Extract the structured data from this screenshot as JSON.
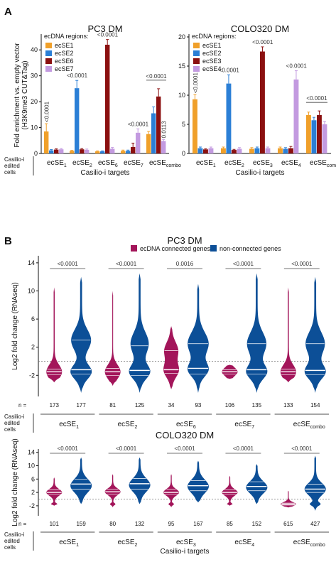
{
  "colors": {
    "ecSE1": "#f0a02a",
    "ecSE2": "#2b7fd6",
    "ecSE6": "#8b1010",
    "ecSE3": "#8b1010",
    "ecSE7": "#c39ae0",
    "ecSE4": "#c39ae0",
    "connected": "#a3155a",
    "nonconnected": "#0c4f97"
  },
  "panel_labels": {
    "a": "A",
    "b": "B"
  },
  "casilio_edited_label": [
    "Casilio-i",
    "edited",
    "cells"
  ],
  "x_group_title": "Casilio-i targets",
  "n_prefix": "n =",
  "chart_data": [
    {
      "type": "bar",
      "title": "PC3 DM",
      "ylabel": [
        "Fold enrichment vs. empty vector",
        "(H3K9me3 CUT&Tag)"
      ],
      "ylim": [
        0,
        45
      ],
      "yticks": [
        "0",
        "10",
        "20",
        "30",
        "40"
      ],
      "yticks_values": [
        0,
        10,
        20,
        30,
        40
      ],
      "legend_title": "ecDNA regions:",
      "legend_position": "top-left",
      "series": [
        {
          "name": "ecSE1",
          "color_key": "ecSE1"
        },
        {
          "name": "ecSE2",
          "color_key": "ecSE2"
        },
        {
          "name": "ecSE6",
          "color_key": "ecSE6"
        },
        {
          "name": "ecSE7",
          "color_key": "ecSE7"
        }
      ],
      "categories": [
        {
          "base": "ecSE",
          "sub": "1",
          "values": [
            8.5,
            1.2,
            1.5,
            1.6
          ],
          "errors": [
            3.0,
            0.3,
            0.3,
            0.3
          ],
          "annotation": "<0.0001",
          "annot_rotated": true
        },
        {
          "base": "ecSE",
          "sub": "2",
          "values": [
            1.0,
            25.2,
            1.6,
            1.4
          ],
          "errors": [
            0.2,
            3.0,
            0.3,
            0.3
          ],
          "annotation": "<0.0001",
          "annot_rotated": false
        },
        {
          "base": "ecSE",
          "sub": "6",
          "values": [
            0.8,
            0.8,
            42.0,
            1.8
          ],
          "errors": [
            0.2,
            0.2,
            2.0,
            0.5
          ],
          "annotation": "<0.0001",
          "annot_rotated": false
        },
        {
          "base": "ecSE",
          "sub": "7",
          "values": [
            1.0,
            1.0,
            2.5,
            8.0
          ],
          "errors": [
            0.3,
            0.3,
            1.5,
            1.5
          ],
          "annotation": "<0.0001",
          "annot_rotated": false
        },
        {
          "base": "ecSE",
          "sub": "combo",
          "values": [
            7.5,
            15.5,
            22.0,
            4.8
          ],
          "errors": [
            1.0,
            2.5,
            3.0,
            0.6
          ],
          "annotation": "<0.0001",
          "annot_rotated": false,
          "extra_annotation": "0.0113"
        }
      ]
    },
    {
      "type": "bar",
      "title": "COLO320 DM",
      "ylabel": [],
      "ylim": [
        0,
        20
      ],
      "yticks": [
        "0",
        "5",
        "10",
        "15",
        "20"
      ],
      "yticks_values": [
        0,
        5,
        10,
        15,
        20
      ],
      "legend_title": "ecDNA regions:",
      "legend_position": "top-left",
      "series": [
        {
          "name": "ecSE1",
          "color_key": "ecSE1"
        },
        {
          "name": "ecSE2",
          "color_key": "ecSE2"
        },
        {
          "name": "ecSE3",
          "color_key": "ecSE3"
        },
        {
          "name": "ecSE4",
          "color_key": "ecSE4"
        }
      ],
      "categories": [
        {
          "base": "ecSE",
          "sub": "1",
          "values": [
            9.3,
            0.9,
            0.7,
            0.9
          ],
          "errors": [
            0.8,
            0.2,
            0.1,
            0.2
          ],
          "annotation": "<0.0001",
          "annot_rotated": true
        },
        {
          "base": "ecSE",
          "sub": "2",
          "values": [
            0.9,
            12.0,
            0.6,
            0.8
          ],
          "errors": [
            0.2,
            1.5,
            0.1,
            0.2
          ],
          "annotation": "<0.0001",
          "annot_rotated": false
        },
        {
          "base": "ecSE",
          "sub": "3",
          "values": [
            0.8,
            0.9,
            17.5,
            0.9
          ],
          "errors": [
            0.2,
            0.2,
            0.8,
            0.2
          ],
          "annotation": "<0.0001",
          "annot_rotated": false
        },
        {
          "base": "ecSE",
          "sub": "4",
          "values": [
            0.9,
            0.8,
            0.9,
            12.7
          ],
          "errors": [
            0.2,
            0.2,
            0.3,
            1.5
          ],
          "annotation": "<0.0001",
          "annot_rotated": false
        },
        {
          "base": "ecSE",
          "sub": "combo",
          "values": [
            6.6,
            5.7,
            6.6,
            5.0
          ],
          "errors": [
            0.5,
            0.5,
            0.7,
            0.5
          ],
          "annotation": "<0.0001",
          "annot_rotated": false
        }
      ]
    },
    {
      "type": "violin",
      "title": "PC3 DM",
      "ylabel": "Log2 fold change (RNAseq)",
      "ylim": [
        -5,
        15
      ],
      "yticks": [
        "-2",
        "2",
        "6",
        "10",
        "14"
      ],
      "yticks_values": [
        -2,
        2,
        6,
        10,
        14
      ],
      "reference_line": 0,
      "legend": [
        {
          "name": "ecDNA connected genes",
          "color_key": "connected"
        },
        {
          "name": "non-connected genes",
          "color_key": "nonconnected"
        }
      ],
      "legend_position": "top",
      "groups": [
        {
          "base": "ecSE",
          "sub": "1",
          "pvalue": "<0.0001",
          "connected": {
            "n": "173",
            "min": -3,
            "max": 10.5,
            "median": -1.5,
            "q1": -1.9,
            "q3": -1.1,
            "modes": [
              [
                -1.5,
                1.0,
                0.7
              ]
            ],
            "wbase": 0.05
          },
          "nonconnected": {
            "n": "177",
            "min": -4.5,
            "max": 12.0,
            "median": -1.2,
            "q1": -1.8,
            "q3": 3.0,
            "modes": [
              [
                -1.5,
                1.0,
                0.8
              ],
              [
                3.0,
                1.5,
                0.75
              ]
            ],
            "wbase": 0.08
          }
        },
        {
          "base": "ecSE",
          "sub": "2",
          "pvalue": "<0.0001",
          "connected": {
            "n": "81",
            "min": -3.5,
            "max": 10.0,
            "median": -1.5,
            "q1": -2.0,
            "q3": -1.0,
            "modes": [
              [
                -1.5,
                1.0,
                0.95
              ]
            ],
            "wbase": 0.05
          },
          "nonconnected": {
            "n": "125",
            "min": -4.5,
            "max": 12.5,
            "median": -1.3,
            "q1": -2.0,
            "q3": 2.2,
            "modes": [
              [
                -1.5,
                1.0,
                0.8
              ],
              [
                2.5,
                1.6,
                0.7
              ]
            ],
            "wbase": 0.08
          }
        },
        {
          "base": "ecSE",
          "sub": "6",
          "pvalue": "0.0016",
          "connected": {
            "n": "34",
            "min": -4.0,
            "max": 5.0,
            "median": -1.2,
            "q1": -1.7,
            "q3": 1.5,
            "modes": [
              [
                -1.3,
                1.0,
                0.95
              ],
              [
                1.5,
                1.2,
                0.9
              ]
            ],
            "wbase": 0.1
          },
          "nonconnected": {
            "n": "93",
            "min": -4.5,
            "max": 11.0,
            "median": -1.0,
            "q1": -1.8,
            "q3": 2.5,
            "modes": [
              [
                -1.2,
                1.0,
                0.8
              ],
              [
                2.5,
                1.6,
                0.85
              ]
            ],
            "wbase": 0.08
          }
        },
        {
          "base": "ecSE",
          "sub": "7",
          "pvalue": "<0.0001",
          "connected": {
            "n": "106",
            "min": -2.5,
            "max": -0.5,
            "median": -1.5,
            "q1": -1.8,
            "q3": -1.2,
            "modes": [
              [
                -1.5,
                0.6,
                0.7
              ]
            ],
            "wbase": 0.05
          },
          "nonconnected": {
            "n": "135",
            "min": -4.5,
            "max": 12.5,
            "median": -1.2,
            "q1": -1.8,
            "q3": 2.5,
            "modes": [
              [
                -1.5,
                1.0,
                0.8
              ],
              [
                2.5,
                1.6,
                0.75
              ]
            ],
            "wbase": 0.08
          }
        },
        {
          "base": "ecSE",
          "sub": "combo",
          "pvalue": "<0.0001",
          "connected": {
            "n": "133",
            "min": -3.0,
            "max": 10.5,
            "median": -1.5,
            "q1": -1.9,
            "q3": -1.1,
            "modes": [
              [
                -1.5,
                1.0,
                0.7
              ]
            ],
            "wbase": 0.05
          },
          "nonconnected": {
            "n": "154",
            "min": -4.5,
            "max": 12.0,
            "median": -1.3,
            "q1": -1.9,
            "q3": 2.5,
            "modes": [
              [
                -1.5,
                1.0,
                0.8
              ],
              [
                2.5,
                1.6,
                0.75
              ]
            ],
            "wbase": 0.08
          }
        }
      ]
    },
    {
      "type": "violin",
      "title": "COLO320 DM",
      "ylabel": "Log2 fold change (RNAseq)",
      "ylim": [
        -5,
        15
      ],
      "yticks": [
        "-2",
        "2",
        "6",
        "10",
        "14"
      ],
      "yticks_values": [
        -2,
        2,
        6,
        10,
        14
      ],
      "reference_line": 0,
      "legend": [],
      "groups": [
        {
          "base": "ecSE",
          "sub": "1",
          "pvalue": "<0.0001",
          "connected": {
            "n": "101",
            "min": -2.0,
            "max": 6.5,
            "median": 2.0,
            "q1": 1.5,
            "q3": 2.8,
            "modes": [
              [
                2.0,
                1.0,
                0.7
              ],
              [
                -1.5,
                0.3,
                0.25
              ]
            ],
            "wbase": 0.05
          },
          "nonconnected": {
            "n": "159",
            "min": -1.5,
            "max": 12.5,
            "median": 4.5,
            "q1": 3.0,
            "q3": 6.0,
            "modes": [
              [
                4.0,
                2.0,
                0.95
              ]
            ],
            "wbase": 0.08
          }
        },
        {
          "base": "ecSE",
          "sub": "2",
          "pvalue": "<0.0001",
          "connected": {
            "n": "80",
            "min": -2.5,
            "max": 7.5,
            "median": 2.2,
            "q1": 1.5,
            "q3": 3.0,
            "modes": [
              [
                2.2,
                1.0,
                0.8
              ],
              [
                -1.5,
                0.3,
                0.25
              ]
            ],
            "wbase": 0.05
          },
          "nonconnected": {
            "n": "132",
            "min": -1.5,
            "max": 12.5,
            "median": 4.6,
            "q1": 3.0,
            "q3": 6.2,
            "modes": [
              [
                4.2,
                2.0,
                0.95
              ]
            ],
            "wbase": 0.08
          }
        },
        {
          "base": "ecSE",
          "sub": "3",
          "pvalue": "<0.0001",
          "connected": {
            "n": "95",
            "min": -2.5,
            "max": 7.5,
            "median": 2.0,
            "q1": 1.5,
            "q3": 3.0,
            "modes": [
              [
                2.0,
                1.0,
                0.8
              ],
              [
                -1.5,
                0.3,
                0.25
              ]
            ],
            "wbase": 0.05
          },
          "nonconnected": {
            "n": "167",
            "min": -1.0,
            "max": 11.5,
            "median": 4.0,
            "q1": 2.5,
            "q3": 5.5,
            "modes": [
              [
                3.8,
                2.0,
                0.95
              ]
            ],
            "wbase": 0.08
          }
        },
        {
          "base": "ecSE",
          "sub": "4",
          "pvalue": "<0.0001",
          "connected": {
            "n": "85",
            "min": -2.0,
            "max": 7.0,
            "median": 2.0,
            "q1": 1.5,
            "q3": 2.8,
            "modes": [
              [
                2.0,
                1.0,
                0.8
              ],
              [
                -1.5,
                0.3,
                0.25
              ]
            ],
            "wbase": 0.05
          },
          "nonconnected": {
            "n": "152",
            "min": -1.5,
            "max": 10.5,
            "median": 3.8,
            "q1": 2.5,
            "q3": 5.2,
            "modes": [
              [
                3.5,
                1.8,
                0.95
              ]
            ],
            "wbase": 0.08
          }
        },
        {
          "base": "ecSE",
          "sub": "combo",
          "pvalue": "<0.0001",
          "connected": {
            "n": "615",
            "min": -2.5,
            "max": 2.5,
            "median": -1.5,
            "q1": -1.8,
            "q3": -1.2,
            "modes": [
              [
                -1.5,
                0.6,
                0.9
              ]
            ],
            "wbase": 0.05
          },
          "nonconnected": {
            "n": "427",
            "min": -3.5,
            "max": 13.0,
            "median": 3.0,
            "q1": 2.0,
            "q3": 4.5,
            "modes": [
              [
                3.0,
                1.8,
                0.95
              ],
              [
                -1.5,
                0.5,
                0.4
              ]
            ],
            "wbase": 0.08
          }
        }
      ]
    }
  ]
}
